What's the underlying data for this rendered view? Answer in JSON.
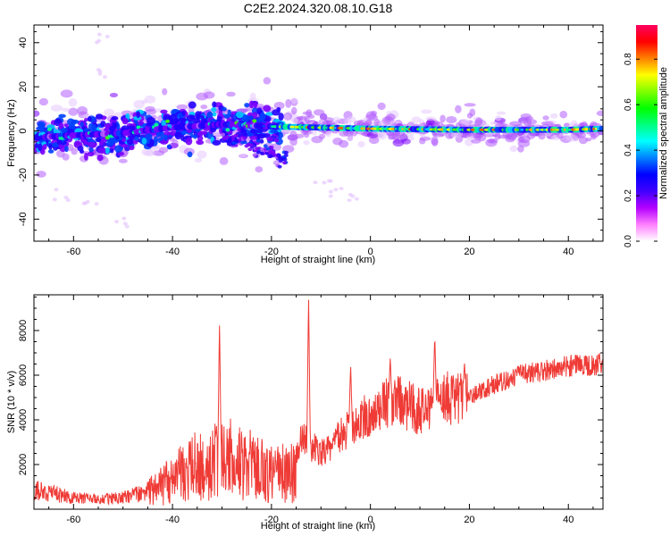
{
  "title": "C2E2.2024.320.08.10.G18",
  "colors": {
    "snr_line": "#ef3b36",
    "frame": "#000000",
    "colormap": [
      "#ffffff",
      "#e6c8ff",
      "#b35cff",
      "#7a00ff",
      "#2200ff",
      "#0040ff",
      "#00c8ff",
      "#00ff90",
      "#40ff00",
      "#c8ff00",
      "#ffff00",
      "#ffb000",
      "#ff5000",
      "#ff0050"
    ]
  },
  "chart_data": [
    {
      "type": "heatmap",
      "name": "spectrogram",
      "xlabel": "Height of straight line (km)",
      "ylabel": "Frequency (Hz)",
      "xlim": [
        -68,
        47
      ],
      "ylim": [
        -50,
        48
      ],
      "xticks": [
        -60,
        -40,
        -20,
        0,
        20,
        40
      ],
      "yticks": [
        -40,
        -20,
        0,
        20,
        40
      ],
      "colorbar": {
        "label": "Normalized spectral amplitude",
        "range": [
          0,
          0.95
        ],
        "ticks": [
          "0.0",
          "0.2",
          "0.4",
          "0.6",
          "0.8"
        ]
      },
      "ridge": [
        {
          "x": -68,
          "f": -3
        },
        {
          "x": -60,
          "f": -2
        },
        {
          "x": -50,
          "f": -1
        },
        {
          "x": -40,
          "f": 1.5
        },
        {
          "x": -30,
          "f": 3
        },
        {
          "x": -20,
          "f": 2
        },
        {
          "x": -10,
          "f": 1.5
        },
        {
          "x": 0,
          "f": 1
        },
        {
          "x": 20,
          "f": 0.5
        },
        {
          "x": 40,
          "f": 0.5
        },
        {
          "x": 47,
          "f": 1
        }
      ],
      "secondary_branch": [
        {
          "x": -30,
          "f": -2
        },
        {
          "x": -25,
          "f": -6
        },
        {
          "x": -20,
          "f": -10
        },
        {
          "x": -17,
          "f": -14
        }
      ],
      "scatter_tail": [
        {
          "x": -55,
          "f": 42
        },
        {
          "x": -55,
          "f": 27
        },
        {
          "x": -62,
          "f": -30
        },
        {
          "x": -57,
          "f": -33
        },
        {
          "x": -50,
          "f": -42
        },
        {
          "x": -7,
          "f": -27
        },
        {
          "x": -4,
          "f": -30
        },
        {
          "x": -10,
          "f": -23
        }
      ]
    },
    {
      "type": "line",
      "name": "snr",
      "xlabel": "Height of straight line (km)",
      "ylabel": "SNR (10 * v/v)",
      "xlim": [
        -68,
        47
      ],
      "ylim": [
        0,
        9600
      ],
      "xticks": [
        -60,
        -40,
        -20,
        0,
        20,
        40
      ],
      "yticks": [
        2000,
        4000,
        6000,
        8000
      ],
      "envelope": [
        {
          "x": -68,
          "y": 900
        },
        {
          "x": -60,
          "y": 500
        },
        {
          "x": -55,
          "y": 450
        },
        {
          "x": -50,
          "y": 500
        },
        {
          "x": -45,
          "y": 800
        },
        {
          "x": -40,
          "y": 1300
        },
        {
          "x": -35,
          "y": 2000
        },
        {
          "x": -30,
          "y": 2300
        },
        {
          "x": -25,
          "y": 2000
        },
        {
          "x": -20,
          "y": 1600
        },
        {
          "x": -16,
          "y": 1600
        },
        {
          "x": -14,
          "y": 3200
        },
        {
          "x": -10,
          "y": 2500
        },
        {
          "x": -5,
          "y": 3500
        },
        {
          "x": 0,
          "y": 4300
        },
        {
          "x": 5,
          "y": 4900
        },
        {
          "x": 10,
          "y": 4400
        },
        {
          "x": 15,
          "y": 5000
        },
        {
          "x": 20,
          "y": 5000
        },
        {
          "x": 25,
          "y": 5600
        },
        {
          "x": 30,
          "y": 6000
        },
        {
          "x": 35,
          "y": 6200
        },
        {
          "x": 40,
          "y": 6400
        },
        {
          "x": 47,
          "y": 6500
        }
      ],
      "peaks": [
        {
          "x": -30.5,
          "y": 8400
        },
        {
          "x": -12.5,
          "y": 9500
        },
        {
          "x": -4,
          "y": 6500
        },
        {
          "x": 13,
          "y": 7800
        },
        {
          "x": 4,
          "y": 6800
        },
        {
          "x": 19,
          "y": 6600
        }
      ]
    }
  ]
}
